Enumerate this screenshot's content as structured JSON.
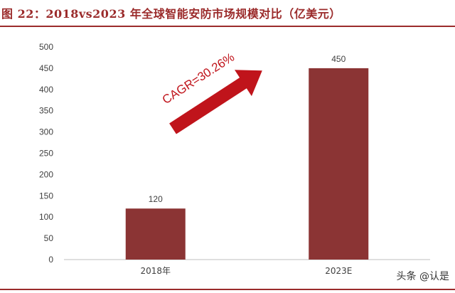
{
  "figure": {
    "title": "图 22：2018vs2023 年全球智能安防市场规模对比（亿美元）",
    "watermark": "头条 @认是"
  },
  "colors": {
    "accent": "#9b2b2b",
    "bar": "#8b3434",
    "arrow": "#c0141b",
    "axis": "#bfbfbf",
    "text": "#404040"
  },
  "chart_data": {
    "type": "bar",
    "title": "",
    "xlabel": "",
    "ylabel": "",
    "categories": [
      "2018年",
      "2023E"
    ],
    "values": [
      120,
      450
    ],
    "data_labels": [
      "120",
      "450"
    ],
    "ylim": [
      0,
      500
    ],
    "yticks": [
      0,
      50,
      100,
      150,
      200,
      250,
      300,
      350,
      400,
      450,
      500
    ],
    "grid": false,
    "annotation": {
      "text": "CAGR=30.26%",
      "type": "arrow-up-right"
    }
  }
}
